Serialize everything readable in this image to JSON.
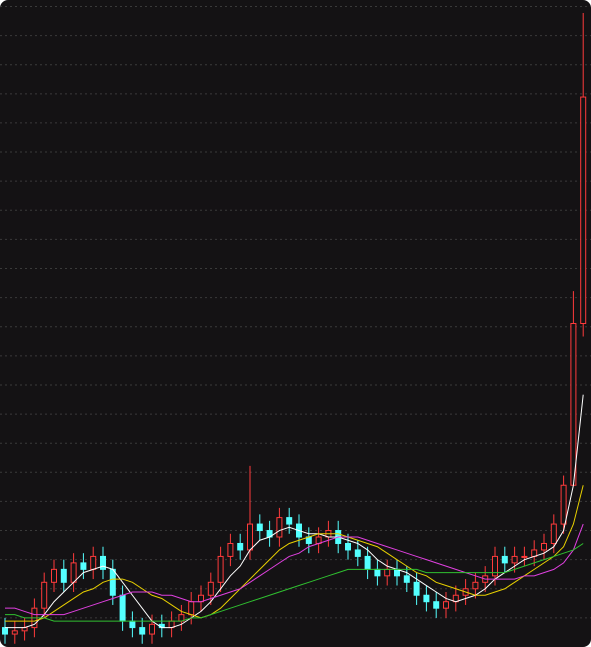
{
  "chart_data": {
    "type": "candlestick",
    "ylim": [
      0,
      100
    ],
    "yticks": [
      4.5,
      9,
      13.5,
      18,
      22.5,
      27,
      31.5,
      36,
      40.5,
      45,
      49.5,
      54,
      58.5,
      63,
      67.5,
      72,
      76.5,
      81,
      85.5,
      90,
      94.5,
      99
    ],
    "grid": true,
    "up_color": "#ff3b3b",
    "down_color": "#54ffff",
    "open": [
      3,
      2,
      2.5,
      3,
      6,
      10,
      12,
      10,
      13,
      12,
      14,
      12,
      8,
      4,
      3,
      2,
      3.5,
      3,
      4,
      5,
      7,
      8,
      10,
      14,
      16,
      15,
      19,
      18,
      17,
      20,
      19,
      17,
      16,
      17,
      18,
      16,
      15,
      14,
      12,
      11,
      12,
      11,
      10,
      8,
      7,
      6,
      7,
      8,
      9,
      10,
      11,
      14,
      13,
      14,
      14,
      15,
      16,
      19,
      25,
      50
    ],
    "high": [
      4.5,
      4,
      4.5,
      7.5,
      11.5,
      13.5,
      13.5,
      14.5,
      14.5,
      15.5,
      15.5,
      13.5,
      9.5,
      5.5,
      4.5,
      5,
      5,
      5.5,
      6.5,
      8.5,
      9.5,
      11.5,
      15.5,
      17.5,
      17.5,
      28,
      20.5,
      19.5,
      21.5,
      21.5,
      20.5,
      18.5,
      18.5,
      19.5,
      19.5,
      17.5,
      16.5,
      15.5,
      13.5,
      13.5,
      13.5,
      12.5,
      11.5,
      9.5,
      8.5,
      8.5,
      9.5,
      10.5,
      11.5,
      12.5,
      15.5,
      15.5,
      15.5,
      15.5,
      16.5,
      17.5,
      20.5,
      26.5,
      55,
      98
    ],
    "low": [
      0.5,
      0.5,
      1,
      1.5,
      4.5,
      8.5,
      8.5,
      8.5,
      10.5,
      10.5,
      10.5,
      6.5,
      2.5,
      1.5,
      0.5,
      0.5,
      1.5,
      1.5,
      2.5,
      3.5,
      5.5,
      6.5,
      8.5,
      12.5,
      13.5,
      13.5,
      16.5,
      15.5,
      15.5,
      17.5,
      15.5,
      14.5,
      14.5,
      15.5,
      14.5,
      13.5,
      12.5,
      10.5,
      9.5,
      9.5,
      9.5,
      8.5,
      6.5,
      5.5,
      4.5,
      4.5,
      5.5,
      6.5,
      7.5,
      8.5,
      9.5,
      11.5,
      11.5,
      12.5,
      12.5,
      13.5,
      14.5,
      17.5,
      25,
      48
    ],
    "close": [
      2,
      2.5,
      3,
      6,
      10,
      12,
      10,
      13,
      12,
      14,
      12,
      8,
      4,
      3,
      2,
      3.5,
      3,
      4,
      5,
      7,
      8,
      10,
      14,
      16,
      15,
      19,
      18,
      17,
      20,
      19,
      17,
      16,
      17,
      18,
      16,
      15,
      14,
      12,
      11,
      12,
      11,
      10,
      8,
      7,
      6,
      7,
      8,
      9,
      10,
      11,
      14,
      13,
      14,
      14,
      15,
      16,
      19,
      25,
      50,
      85
    ],
    "series": [
      {
        "color": "#ffffff",
        "values": [
          3,
          3,
          3,
          3.5,
          5,
          7,
          8.5,
          10,
          11.5,
          12,
          12.5,
          12,
          10,
          8,
          6,
          4,
          3,
          3,
          3.5,
          4.5,
          5.5,
          7,
          9,
          11,
          12.5,
          15,
          16.5,
          17,
          18,
          18.5,
          18,
          17.5,
          17.5,
          17,
          17,
          16.5,
          16,
          15,
          13.5,
          12.5,
          12,
          11.5,
          10.5,
          9.5,
          8.5,
          7.5,
          7,
          7.5,
          8,
          9,
          10.5,
          11.5,
          12.5,
          13.5,
          14,
          14.5,
          15.5,
          18,
          25,
          39
        ]
      },
      {
        "color": "#e8d000",
        "values": [
          4,
          4,
          4,
          4,
          4.5,
          5.5,
          6.5,
          7.5,
          8.5,
          9,
          10,
          10.5,
          10.5,
          10,
          9,
          8,
          7.5,
          6.5,
          5.5,
          5,
          4.5,
          5,
          6,
          7.5,
          9,
          10.5,
          12,
          13.5,
          15,
          16,
          16.5,
          17,
          17.5,
          17.5,
          17.5,
          17,
          16.5,
          16,
          15.5,
          14.5,
          13.5,
          12.5,
          11.5,
          11,
          10,
          9.5,
          9,
          8.5,
          8,
          8,
          8.5,
          9,
          10,
          11,
          12,
          13,
          14,
          15.5,
          19,
          25
        ]
      },
      {
        "color": "#e040e0",
        "values": [
          6,
          6,
          5.5,
          5,
          5,
          5,
          5,
          5.5,
          6,
          6.5,
          7,
          7.5,
          8,
          8.5,
          8.5,
          8.5,
          8,
          8,
          7.5,
          7,
          7,
          7.5,
          8,
          8.5,
          9,
          10,
          11,
          12,
          13,
          14,
          14.5,
          15.5,
          16,
          16.5,
          17,
          17,
          17,
          16.5,
          16,
          15.5,
          15,
          14.5,
          14,
          13.5,
          13,
          12.5,
          12,
          11.5,
          11,
          10.5,
          10.5,
          10.5,
          10.5,
          11,
          11,
          11.5,
          12,
          13,
          15,
          19
        ]
      },
      {
        "color": "#30c030",
        "values": [
          5,
          5,
          4.5,
          4.5,
          4.5,
          4,
          4,
          4,
          4,
          4,
          4,
          4,
          4,
          4,
          4,
          4,
          4,
          4,
          4,
          4.5,
          4.5,
          5,
          5.5,
          6,
          6.5,
          7,
          7.5,
          8,
          8.5,
          9,
          9.5,
          10,
          10.5,
          11,
          11.5,
          12,
          12,
          12,
          12,
          12,
          12,
          12,
          12,
          11.5,
          11.5,
          11.5,
          11.5,
          11.5,
          11.5,
          11.5,
          11.5,
          11.5,
          12,
          12.5,
          13,
          13.5,
          14,
          14.5,
          15,
          16
        ]
      }
    ]
  }
}
